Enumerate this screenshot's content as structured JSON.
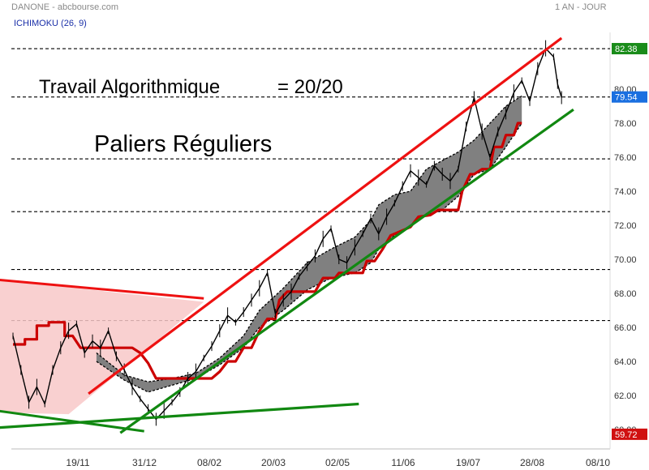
{
  "header": {
    "title": "DANONE - abcbourse.com",
    "period": "1 AN - JOUR",
    "indicator": "ICHIMOKU (26, 9)"
  },
  "annotations": {
    "line1_left": "Travail Algorithmique",
    "line1_right": "=  20/20",
    "line2": "Paliers Réguliers"
  },
  "colors": {
    "price": "#000000",
    "kijun": "#cc0000",
    "cloud_fill": "#808080",
    "resistance": "#ee1111",
    "support": "#118811",
    "triangle_fill": "#f8c8c8",
    "badge_high": "#1a8c1a",
    "badge_last": "#1a6fe0",
    "badge_low": "#d01010"
  },
  "chart_data": {
    "type": "line",
    "title": "DANONE - abcbourse.com",
    "indicator": "ICHIMOKU (26, 9)",
    "x_ticks": [
      "19/11",
      "31/12",
      "08/02",
      "20/03",
      "02/05",
      "11/06",
      "19/07",
      "28/08",
      "08/10"
    ],
    "y_ticks": [
      60,
      62,
      64,
      66,
      68,
      70,
      72,
      74,
      76,
      78,
      80
    ],
    "ylim": [
      60,
      82.6
    ],
    "badges": [
      {
        "label": "82.38",
        "value": 82.38,
        "role": "high"
      },
      {
        "label": "79.54",
        "value": 79.54,
        "role": "last"
      },
      {
        "label": "59.72",
        "value": 59.72,
        "role": "low"
      }
    ],
    "horizontal_levels": [
      82.38,
      79.54,
      75.9,
      72.8,
      69.4,
      66.4
    ],
    "price_path": [
      [
        0,
        65.5
      ],
      [
        2,
        63.5
      ],
      [
        4,
        61.6
      ],
      [
        6,
        62.5
      ],
      [
        8,
        61.5
      ],
      [
        10,
        63.5
      ],
      [
        12,
        64.8
      ],
      [
        14,
        65.8
      ],
      [
        16,
        66.2
      ],
      [
        18,
        64.5
      ],
      [
        20,
        65.2
      ],
      [
        22,
        64.8
      ],
      [
        24,
        65.8
      ],
      [
        26,
        64.3
      ],
      [
        28,
        63.5
      ],
      [
        30,
        62.5
      ],
      [
        32,
        61.8
      ],
      [
        34,
        61.2
      ],
      [
        36,
        60.6
      ],
      [
        38,
        61.1
      ],
      [
        40,
        61.6
      ],
      [
        42,
        62.2
      ],
      [
        44,
        63.0
      ],
      [
        46,
        63.4
      ],
      [
        48,
        64.2
      ],
      [
        50,
        64.9
      ],
      [
        52,
        65.8
      ],
      [
        54,
        66.7
      ],
      [
        56,
        66.3
      ],
      [
        58,
        66.9
      ],
      [
        60,
        67.6
      ],
      [
        62,
        68.3
      ],
      [
        64,
        69.2
      ],
      [
        66,
        66.8
      ],
      [
        68,
        67.6
      ],
      [
        70,
        68.1
      ],
      [
        72,
        69.0
      ],
      [
        74,
        69.6
      ],
      [
        76,
        70.2
      ],
      [
        78,
        71.2
      ],
      [
        80,
        71.8
      ],
      [
        82,
        70.0
      ],
      [
        84,
        69.8
      ],
      [
        86,
        70.7
      ],
      [
        88,
        71.5
      ],
      [
        90,
        72.4
      ],
      [
        92,
        71.5
      ],
      [
        94,
        72.5
      ],
      [
        96,
        73.3
      ],
      [
        98,
        74.3
      ],
      [
        100,
        75.2
      ],
      [
        102,
        74.8
      ],
      [
        104,
        74.4
      ],
      [
        106,
        75.5
      ],
      [
        108,
        75.0
      ],
      [
        110,
        74.6
      ],
      [
        112,
        75.3
      ],
      [
        114,
        77.8
      ],
      [
        116,
        79.5
      ],
      [
        118,
        77.5
      ],
      [
        120,
        76.0
      ],
      [
        122,
        77.5
      ],
      [
        124,
        78.6
      ],
      [
        126,
        79.8
      ],
      [
        128,
        80.5
      ],
      [
        130,
        79.3
      ],
      [
        132,
        81.2
      ],
      [
        134,
        82.4
      ],
      [
        136,
        81.9
      ],
      [
        137,
        80.3
      ],
      [
        138,
        79.5
      ]
    ],
    "kijun_path": [
      [
        0,
        65.0
      ],
      [
        3,
        65.0
      ],
      [
        3,
        65.3
      ],
      [
        6,
        65.3
      ],
      [
        6,
        66.1
      ],
      [
        9,
        66.1
      ],
      [
        9,
        66.3
      ],
      [
        13,
        66.3
      ],
      [
        13,
        65.5
      ],
      [
        15,
        65.5
      ],
      [
        17,
        64.8
      ],
      [
        30,
        64.8
      ],
      [
        32,
        64.5
      ],
      [
        34,
        63.9
      ],
      [
        36,
        63.0
      ],
      [
        50,
        63.0
      ],
      [
        52,
        63.4
      ],
      [
        54,
        64.0
      ],
      [
        56,
        64.0
      ],
      [
        58,
        64.8
      ],
      [
        60,
        64.8
      ],
      [
        62,
        65.8
      ],
      [
        64,
        66.5
      ],
      [
        66,
        66.5
      ],
      [
        67,
        67.6
      ],
      [
        69,
        68.1
      ],
      [
        76,
        68.1
      ],
      [
        78,
        68.9
      ],
      [
        81,
        68.9
      ],
      [
        82,
        69.2
      ],
      [
        88,
        69.2
      ],
      [
        89,
        69.9
      ],
      [
        91,
        69.9
      ],
      [
        93,
        70.6
      ],
      [
        95,
        71.4
      ],
      [
        98,
        71.7
      ],
      [
        100,
        71.9
      ],
      [
        102,
        72.5
      ],
      [
        105,
        72.6
      ],
      [
        107,
        72.9
      ],
      [
        112,
        72.9
      ],
      [
        113,
        74.0
      ],
      [
        115,
        75.0
      ],
      [
        116,
        75.0
      ],
      [
        118,
        75.3
      ],
      [
        120,
        75.3
      ],
      [
        121,
        76.6
      ],
      [
        123,
        76.6
      ],
      [
        124,
        77.3
      ],
      [
        126,
        77.3
      ],
      [
        127,
        78.0
      ],
      [
        128,
        78.0
      ]
    ],
    "cloud_upper": [
      [
        21,
        64.5
      ],
      [
        28,
        63.2
      ],
      [
        34,
        62.8
      ],
      [
        40,
        63.0
      ],
      [
        46,
        63.3
      ],
      [
        52,
        64.2
      ],
      [
        58,
        65.5
      ],
      [
        62,
        67.0
      ],
      [
        68,
        68.3
      ],
      [
        74,
        69.8
      ],
      [
        80,
        70.6
      ],
      [
        86,
        71.3
      ],
      [
        90,
        72.3
      ],
      [
        92,
        73.2
      ],
      [
        96,
        73.8
      ],
      [
        100,
        74.0
      ],
      [
        104,
        75.3
      ],
      [
        108,
        75.8
      ],
      [
        112,
        76.3
      ],
      [
        116,
        77.0
      ],
      [
        120,
        78.0
      ],
      [
        124,
        79.0
      ],
      [
        128,
        79.6
      ]
    ],
    "cloud_lower": [
      [
        21,
        64.0
      ],
      [
        28,
        62.9
      ],
      [
        34,
        62.2
      ],
      [
        40,
        62.6
      ],
      [
        46,
        63.0
      ],
      [
        52,
        63.8
      ],
      [
        58,
        64.8
      ],
      [
        62,
        66.0
      ],
      [
        68,
        67.0
      ],
      [
        74,
        68.2
      ],
      [
        80,
        68.9
      ],
      [
        86,
        69.2
      ],
      [
        90,
        69.8
      ],
      [
        92,
        70.6
      ],
      [
        96,
        71.4
      ],
      [
        100,
        72.0
      ],
      [
        104,
        72.6
      ],
      [
        108,
        72.9
      ],
      [
        112,
        73.7
      ],
      [
        116,
        75.0
      ],
      [
        120,
        75.3
      ],
      [
        124,
        76.6
      ],
      [
        128,
        78.0
      ]
    ],
    "resistance_line": [
      [
        19,
        62.1
      ],
      [
        138,
        83.0
      ]
    ],
    "support_line": [
      [
        27,
        59.8
      ],
      [
        141,
        78.8
      ]
    ],
    "triangle_upper": [
      [
        -4,
        68.8
      ],
      [
        48,
        67.7
      ]
    ],
    "triangle_lower": [
      [
        -4,
        61.1
      ],
      [
        33,
        59.9
      ]
    ],
    "triangle_shade": [
      [
        -4,
        68.8
      ],
      [
        48,
        67.5
      ],
      [
        14,
        60.9
      ],
      [
        -4,
        61.0
      ]
    ],
    "long_support_line": [
      [
        -4,
        60.1
      ],
      [
        87,
        61.5
      ]
    ]
  }
}
